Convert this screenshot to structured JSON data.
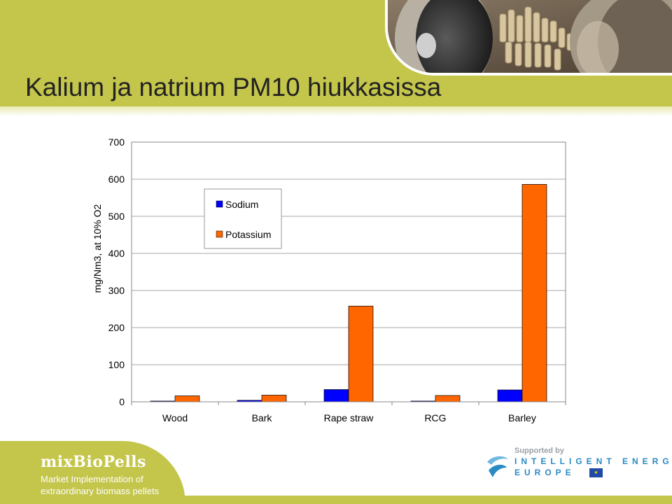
{
  "title": "Kalium ja natrium PM10 hiukkasissa",
  "colors": {
    "sodium": "#0000ff",
    "potassium": "#ff6600",
    "band": "#c4c54b"
  },
  "chart_data": {
    "type": "bar",
    "title": "",
    "xlabel": "",
    "ylabel": "mg/Nm3, at 10% O2",
    "ylim": [
      0,
      700
    ],
    "yticks": [
      0,
      100,
      200,
      300,
      400,
      500,
      600,
      700
    ],
    "categories": [
      "Wood",
      "Bark",
      "Rape straw",
      "RCG",
      "Barley"
    ],
    "series": [
      {
        "name": "Sodium",
        "values": [
          2,
          4,
          33,
          2,
          32
        ]
      },
      {
        "name": "Potassium",
        "values": [
          16,
          18,
          258,
          17,
          586
        ]
      }
    ],
    "grid": true,
    "legend_position": "top-left inside plot"
  },
  "footer": {
    "brand": "mixBioPells",
    "tagline_line1": "Market Implementation of",
    "tagline_line2": "extraordinary biomass pellets",
    "supported_by": "Supported by",
    "iee_line1": "INTELLIGENT ENERGY",
    "iee_line2": "EUROPE",
    "eu_flag_icon": "eu-flag-icon"
  }
}
